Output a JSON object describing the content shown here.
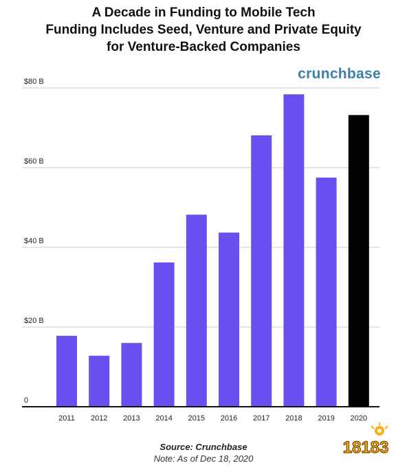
{
  "header": {
    "title_line1": "A Decade in Funding to Mobile Tech",
    "title_line2": "Funding Includes Seed, Venture and Private Equity",
    "title_line3": "for Venture-Backed Companies",
    "brand": "crunchbase"
  },
  "footer": {
    "source": "Source: Crunchbase",
    "note": "Note: As of Dec 18, 2020"
  },
  "watermark": {
    "text": "18183"
  },
  "colors": {
    "bar": "#6a4ff0",
    "highlight_bar": "#000000",
    "brand": "#3c7fa8",
    "gridline": "#cccccc"
  },
  "chart_data": {
    "type": "bar",
    "categories": [
      "2011",
      "2012",
      "2013",
      "2014",
      "2015",
      "2016",
      "2017",
      "2018",
      "2019",
      "2020"
    ],
    "values": [
      17.8,
      12.8,
      16,
      36.2,
      48.2,
      43.7,
      68.1,
      78.4,
      57.5,
      73.2
    ],
    "highlight": [
      "2020"
    ],
    "unit": "B",
    "ylim": [
      0,
      80
    ],
    "yticks": [
      {
        "value": 0,
        "label": "0"
      },
      {
        "value": 20,
        "label": "$20 B"
      },
      {
        "value": 40,
        "label": "$40 B"
      },
      {
        "value": 60,
        "label": "$60 B"
      },
      {
        "value": 80,
        "label": "$80 B"
      }
    ],
    "grid": true,
    "xlabel": "",
    "ylabel": ""
  }
}
